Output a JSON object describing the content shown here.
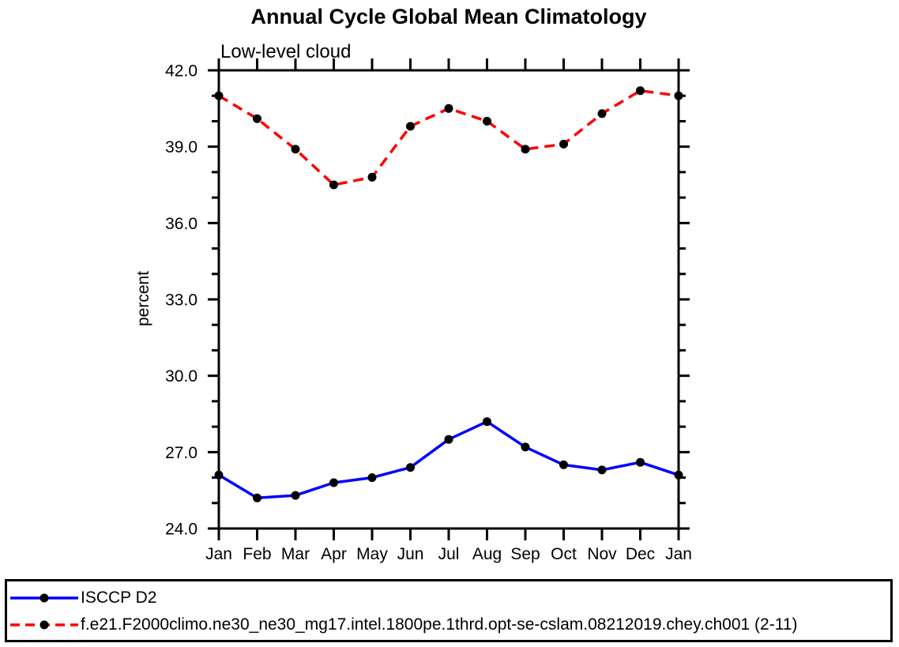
{
  "title": "Annual Cycle Global Mean Climatology",
  "subtitle": "Low-level cloud",
  "ylabel": "percent",
  "colors": {
    "obs_line": "#0000ff",
    "model_line": "#ff0000",
    "marker": "#000000",
    "axis": "#000000",
    "background": "#ffffff"
  },
  "legend": {
    "entries": [
      {
        "label": "ISCCP D2",
        "color": "#0000ff",
        "style": "solid",
        "marker": "filled-circle"
      },
      {
        "label": "f.e21.F2000climo.ne30_ne30_mg17.intel.1800pe.1thrd.opt-se-cslam.08212019.chey.ch001 (2-11)",
        "color": "#ff0000",
        "style": "dashed",
        "marker": "filled-circle"
      }
    ]
  },
  "chart_data": {
    "type": "line",
    "title": "Annual Cycle Global Mean Climatology",
    "subtitle": "Low-level cloud",
    "xlabel": "",
    "ylabel": "percent",
    "categories": [
      "Jan",
      "Feb",
      "Mar",
      "Apr",
      "May",
      "Jun",
      "Jul",
      "Aug",
      "Sep",
      "Oct",
      "Nov",
      "Dec",
      "Jan"
    ],
    "series": [
      {
        "name": "ISCCP D2",
        "color": "#0000ff",
        "line_style": "solid",
        "marker": "filled-circle",
        "marker_color": "#000000",
        "values": [
          26.1,
          25.2,
          25.3,
          25.8,
          26.0,
          26.4,
          27.5,
          28.2,
          27.2,
          26.5,
          26.3,
          26.6,
          26.1
        ]
      },
      {
        "name": "f.e21.F2000climo.ne30_ne30_mg17.intel.1800pe.1thrd.opt-se-cslam.08212019.chey.ch001 (2-11)",
        "color": "#ff0000",
        "line_style": "dashed",
        "marker": "filled-circle",
        "marker_color": "#000000",
        "values": [
          41.0,
          40.1,
          38.9,
          37.5,
          37.8,
          39.8,
          40.5,
          40.0,
          38.9,
          39.1,
          40.3,
          41.2,
          41.0
        ]
      }
    ],
    "ylim": [
      24.0,
      42.0
    ],
    "ytick_major": [
      24.0,
      27.0,
      30.0,
      33.0,
      36.0,
      39.0,
      42.0
    ],
    "ytick_labels": [
      "24.0",
      "27.0",
      "30.0",
      "33.0",
      "36.0",
      "39.0",
      "42.0"
    ],
    "ytick_minor_step": 1.0,
    "grid": false,
    "ticks": "outward-all-sides",
    "legend_position": "bottom-outside-box"
  }
}
